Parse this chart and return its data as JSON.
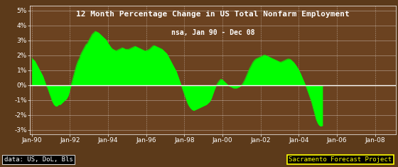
{
  "title_line1": "12 Month Percentage Change in US Total Nonfarm Employment",
  "title_line2": "nsa, Jan 90 - Dec 08",
  "xlabel_ticks": [
    "Jan-90",
    "Jan-92",
    "Jan-94",
    "Jan-96",
    "Jan-98",
    "Jan-00",
    "Jan-02",
    "Jan-04",
    "Jan-06",
    "Jan-08"
  ],
  "yticks": [
    -3,
    -2,
    -1,
    0,
    1,
    2,
    3,
    4,
    5
  ],
  "ytick_labels": [
    "-3%",
    "-2%",
    "-1%",
    "0%",
    "1%",
    "2%",
    "3%",
    "4%",
    "5%"
  ],
  "ylim": [
    -3.3,
    5.3
  ],
  "fill_color": "#00FF00",
  "line_color": "#00FF00",
  "background_color": "#5C3A1A",
  "plot_bg_color": "#6B4220",
  "grid_color": "#FFFFFF",
  "text_color": "#FFFFFF",
  "title_color": "#FFFFFF",
  "zero_line_color": "#FFFFFF",
  "footer_left": "data: US, DoL, Bls",
  "footer_right": "Sacramento Forecast Project",
  "footer_right_color": "#FFFF00",
  "footer_right_border": "#FFFF00",
  "values": [
    1.8,
    1.7,
    1.6,
    1.4,
    1.2,
    1.0,
    0.8,
    0.6,
    0.3,
    0.0,
    -0.2,
    -0.5,
    -0.8,
    -1.1,
    -1.3,
    -1.4,
    -1.4,
    -1.3,
    -1.3,
    -1.2,
    -1.1,
    -1.0,
    -0.9,
    -0.7,
    -0.3,
    0.1,
    0.5,
    0.9,
    1.3,
    1.6,
    1.8,
    2.1,
    2.3,
    2.5,
    2.7,
    2.8,
    3.0,
    3.2,
    3.4,
    3.5,
    3.6,
    3.55,
    3.5,
    3.4,
    3.3,
    3.2,
    3.1,
    3.0,
    2.8,
    2.65,
    2.5,
    2.4,
    2.35,
    2.3,
    2.35,
    2.4,
    2.45,
    2.5,
    2.45,
    2.4,
    2.4,
    2.4,
    2.45,
    2.5,
    2.55,
    2.6,
    2.55,
    2.5,
    2.45,
    2.4,
    2.35,
    2.3,
    2.3,
    2.35,
    2.4,
    2.5,
    2.6,
    2.65,
    2.6,
    2.55,
    2.5,
    2.45,
    2.4,
    2.3,
    2.2,
    2.1,
    1.9,
    1.7,
    1.5,
    1.3,
    1.1,
    0.9,
    0.6,
    0.3,
    0.0,
    -0.3,
    -0.6,
    -0.9,
    -1.2,
    -1.4,
    -1.55,
    -1.65,
    -1.7,
    -1.65,
    -1.6,
    -1.55,
    -1.5,
    -1.45,
    -1.4,
    -1.35,
    -1.3,
    -1.2,
    -1.1,
    -0.9,
    -0.6,
    -0.3,
    -0.05,
    0.15,
    0.3,
    0.4,
    0.35,
    0.25,
    0.15,
    0.05,
    -0.05,
    -0.1,
    -0.15,
    -0.2,
    -0.2,
    -0.2,
    -0.15,
    -0.1,
    0.0,
    0.15,
    0.35,
    0.6,
    0.85,
    1.1,
    1.3,
    1.5,
    1.65,
    1.75,
    1.8,
    1.85,
    1.9,
    1.95,
    2.0,
    2.0,
    1.95,
    1.9,
    1.85,
    1.8,
    1.75,
    1.7,
    1.65,
    1.6,
    1.55,
    1.55,
    1.6,
    1.65,
    1.7,
    1.75,
    1.75,
    1.7,
    1.6,
    1.5,
    1.35,
    1.2,
    1.0,
    0.8,
    0.55,
    0.3,
    0.05,
    -0.2,
    -0.5,
    -0.8,
    -1.1,
    -1.5,
    -1.9,
    -2.3,
    -2.55,
    -2.7,
    -2.75,
    -2.7
  ]
}
